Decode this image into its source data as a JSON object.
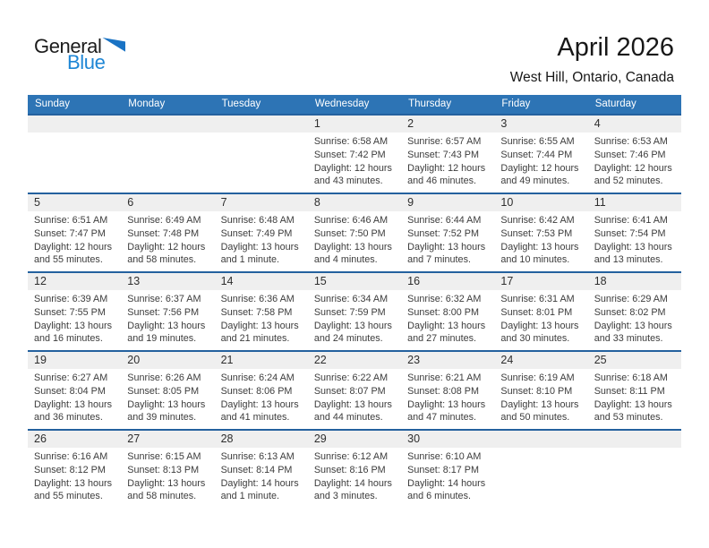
{
  "logo": {
    "general": "General",
    "blue": "Blue"
  },
  "header": {
    "title": "April 2026",
    "subtitle": "West Hill, Ontario, Canada"
  },
  "weekday_headers": [
    "Sunday",
    "Monday",
    "Tuesday",
    "Wednesday",
    "Thursday",
    "Friday",
    "Saturday"
  ],
  "colors": {
    "header_bar": "#2D74B5",
    "week_border": "#24619E",
    "day_number_band": "#EFEFEF",
    "logo_blue": "#1E86D5",
    "logo_triangle": "#1A73C4"
  },
  "weeks": [
    [
      {
        "day": "",
        "lines": []
      },
      {
        "day": "",
        "lines": []
      },
      {
        "day": "",
        "lines": []
      },
      {
        "day": "1",
        "lines": [
          "Sunrise: 6:58 AM",
          "Sunset: 7:42 PM",
          "Daylight: 12 hours",
          "and 43 minutes."
        ]
      },
      {
        "day": "2",
        "lines": [
          "Sunrise: 6:57 AM",
          "Sunset: 7:43 PM",
          "Daylight: 12 hours",
          "and 46 minutes."
        ]
      },
      {
        "day": "3",
        "lines": [
          "Sunrise: 6:55 AM",
          "Sunset: 7:44 PM",
          "Daylight: 12 hours",
          "and 49 minutes."
        ]
      },
      {
        "day": "4",
        "lines": [
          "Sunrise: 6:53 AM",
          "Sunset: 7:46 PM",
          "Daylight: 12 hours",
          "and 52 minutes."
        ]
      }
    ],
    [
      {
        "day": "5",
        "lines": [
          "Sunrise: 6:51 AM",
          "Sunset: 7:47 PM",
          "Daylight: 12 hours",
          "and 55 minutes."
        ]
      },
      {
        "day": "6",
        "lines": [
          "Sunrise: 6:49 AM",
          "Sunset: 7:48 PM",
          "Daylight: 12 hours",
          "and 58 minutes."
        ]
      },
      {
        "day": "7",
        "lines": [
          "Sunrise: 6:48 AM",
          "Sunset: 7:49 PM",
          "Daylight: 13 hours",
          "and 1 minute."
        ]
      },
      {
        "day": "8",
        "lines": [
          "Sunrise: 6:46 AM",
          "Sunset: 7:50 PM",
          "Daylight: 13 hours",
          "and 4 minutes."
        ]
      },
      {
        "day": "9",
        "lines": [
          "Sunrise: 6:44 AM",
          "Sunset: 7:52 PM",
          "Daylight: 13 hours",
          "and 7 minutes."
        ]
      },
      {
        "day": "10",
        "lines": [
          "Sunrise: 6:42 AM",
          "Sunset: 7:53 PM",
          "Daylight: 13 hours",
          "and 10 minutes."
        ]
      },
      {
        "day": "11",
        "lines": [
          "Sunrise: 6:41 AM",
          "Sunset: 7:54 PM",
          "Daylight: 13 hours",
          "and 13 minutes."
        ]
      }
    ],
    [
      {
        "day": "12",
        "lines": [
          "Sunrise: 6:39 AM",
          "Sunset: 7:55 PM",
          "Daylight: 13 hours",
          "and 16 minutes."
        ]
      },
      {
        "day": "13",
        "lines": [
          "Sunrise: 6:37 AM",
          "Sunset: 7:56 PM",
          "Daylight: 13 hours",
          "and 19 minutes."
        ]
      },
      {
        "day": "14",
        "lines": [
          "Sunrise: 6:36 AM",
          "Sunset: 7:58 PM",
          "Daylight: 13 hours",
          "and 21 minutes."
        ]
      },
      {
        "day": "15",
        "lines": [
          "Sunrise: 6:34 AM",
          "Sunset: 7:59 PM",
          "Daylight: 13 hours",
          "and 24 minutes."
        ]
      },
      {
        "day": "16",
        "lines": [
          "Sunrise: 6:32 AM",
          "Sunset: 8:00 PM",
          "Daylight: 13 hours",
          "and 27 minutes."
        ]
      },
      {
        "day": "17",
        "lines": [
          "Sunrise: 6:31 AM",
          "Sunset: 8:01 PM",
          "Daylight: 13 hours",
          "and 30 minutes."
        ]
      },
      {
        "day": "18",
        "lines": [
          "Sunrise: 6:29 AM",
          "Sunset: 8:02 PM",
          "Daylight: 13 hours",
          "and 33 minutes."
        ]
      }
    ],
    [
      {
        "day": "19",
        "lines": [
          "Sunrise: 6:27 AM",
          "Sunset: 8:04 PM",
          "Daylight: 13 hours",
          "and 36 minutes."
        ]
      },
      {
        "day": "20",
        "lines": [
          "Sunrise: 6:26 AM",
          "Sunset: 8:05 PM",
          "Daylight: 13 hours",
          "and 39 minutes."
        ]
      },
      {
        "day": "21",
        "lines": [
          "Sunrise: 6:24 AM",
          "Sunset: 8:06 PM",
          "Daylight: 13 hours",
          "and 41 minutes."
        ]
      },
      {
        "day": "22",
        "lines": [
          "Sunrise: 6:22 AM",
          "Sunset: 8:07 PM",
          "Daylight: 13 hours",
          "and 44 minutes."
        ]
      },
      {
        "day": "23",
        "lines": [
          "Sunrise: 6:21 AM",
          "Sunset: 8:08 PM",
          "Daylight: 13 hours",
          "and 47 minutes."
        ]
      },
      {
        "day": "24",
        "lines": [
          "Sunrise: 6:19 AM",
          "Sunset: 8:10 PM",
          "Daylight: 13 hours",
          "and 50 minutes."
        ]
      },
      {
        "day": "25",
        "lines": [
          "Sunrise: 6:18 AM",
          "Sunset: 8:11 PM",
          "Daylight: 13 hours",
          "and 53 minutes."
        ]
      }
    ],
    [
      {
        "day": "26",
        "lines": [
          "Sunrise: 6:16 AM",
          "Sunset: 8:12 PM",
          "Daylight: 13 hours",
          "and 55 minutes."
        ]
      },
      {
        "day": "27",
        "lines": [
          "Sunrise: 6:15 AM",
          "Sunset: 8:13 PM",
          "Daylight: 13 hours",
          "and 58 minutes."
        ]
      },
      {
        "day": "28",
        "lines": [
          "Sunrise: 6:13 AM",
          "Sunset: 8:14 PM",
          "Daylight: 14 hours",
          "and 1 minute."
        ]
      },
      {
        "day": "29",
        "lines": [
          "Sunrise: 6:12 AM",
          "Sunset: 8:16 PM",
          "Daylight: 14 hours",
          "and 3 minutes."
        ]
      },
      {
        "day": "30",
        "lines": [
          "Sunrise: 6:10 AM",
          "Sunset: 8:17 PM",
          "Daylight: 14 hours",
          "and 6 minutes."
        ]
      },
      {
        "day": "",
        "lines": []
      },
      {
        "day": "",
        "lines": []
      }
    ]
  ]
}
